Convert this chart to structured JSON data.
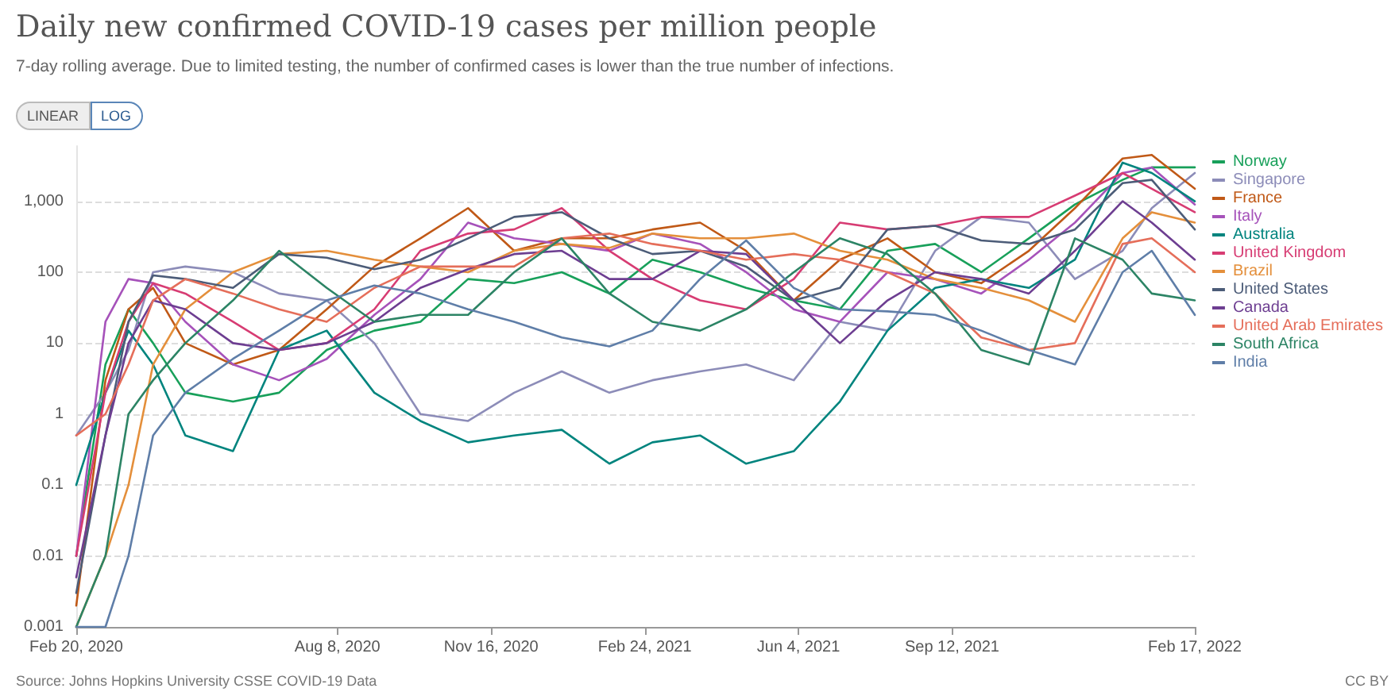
{
  "chart_data": {
    "type": "line",
    "title": "Daily new confirmed COVID-19 cases per million people",
    "subtitle": "7-day rolling average. Due to limited testing, the number of confirmed cases is lower than the true number of infections.",
    "annotations": [
      "LINEAR",
      "LOG",
      "Source: Johns Hopkins University CSSE COVID-19 Data",
      "CC BY"
    ],
    "x": [
      "2020-02-20",
      "2020-03-10",
      "2020-03-25",
      "2020-04-10",
      "2020-05-01",
      "2020-06-01",
      "2020-07-01",
      "2020-08-01",
      "2020-09-01",
      "2020-10-01",
      "2020-11-01",
      "2020-12-01",
      "2021-01-01",
      "2021-02-01",
      "2021-03-01",
      "2021-04-01",
      "2021-05-01",
      "2021-06-01",
      "2021-07-01",
      "2021-08-01",
      "2021-09-01",
      "2021-10-01",
      "2021-11-01",
      "2021-12-01",
      "2022-01-01",
      "2022-01-20",
      "2022-02-17"
    ],
    "series": [
      {
        "name": "Norway",
        "color": "#18a05a",
        "values": [
          0.01,
          5,
          30,
          10,
          2,
          1.5,
          2,
          8,
          15,
          20,
          80,
          70,
          100,
          50,
          150,
          100,
          60,
          40,
          30,
          200,
          250,
          100,
          300,
          900,
          2000,
          3000,
          3000
        ]
      },
      {
        "name": "Singapore",
        "color": "#8c8cb8",
        "values": [
          0.5,
          2,
          8,
          100,
          120,
          100,
          50,
          40,
          10,
          1,
          0.8,
          2,
          4,
          2,
          3,
          4,
          5,
          3,
          20,
          15,
          200,
          600,
          500,
          80,
          200,
          800,
          2500
        ]
      },
      {
        "name": "France",
        "color": "#c05917",
        "values": [
          0.002,
          3,
          30,
          60,
          10,
          5,
          8,
          30,
          120,
          300,
          800,
          200,
          300,
          300,
          400,
          500,
          200,
          40,
          150,
          300,
          100,
          70,
          200,
          800,
          4000,
          4500,
          1500
        ]
      },
      {
        "name": "Italy",
        "color": "#a652ba",
        "values": [
          0.01,
          20,
          80,
          70,
          20,
          5,
          3,
          6,
          25,
          80,
          500,
          300,
          250,
          200,
          350,
          250,
          100,
          30,
          20,
          100,
          80,
          50,
          150,
          500,
          2500,
          3000,
          900
        ]
      },
      {
        "name": "Australia",
        "color": "#00847e",
        "values": [
          0.1,
          2,
          15,
          5,
          0.5,
          0.3,
          8,
          15,
          2,
          0.8,
          0.4,
          0.5,
          0.6,
          0.2,
          0.4,
          0.5,
          0.2,
          0.3,
          1.5,
          15,
          60,
          80,
          60,
          150,
          3500,
          2500,
          1000
        ]
      },
      {
        "name": "United Kingdom",
        "color": "#d73c73",
        "values": [
          0.01,
          2,
          20,
          70,
          50,
          20,
          8,
          10,
          30,
          200,
          350,
          400,
          800,
          200,
          80,
          40,
          30,
          80,
          500,
          400,
          450,
          600,
          600,
          1200,
          2500,
          1500,
          700
        ]
      },
      {
        "name": "Brazil",
        "color": "#e48f3b",
        "values": [
          0.001,
          0.01,
          0.1,
          5,
          30,
          100,
          180,
          200,
          150,
          120,
          100,
          200,
          250,
          220,
          350,
          300,
          300,
          350,
          200,
          150,
          80,
          60,
          40,
          20,
          300,
          700,
          500
        ]
      },
      {
        "name": "United States",
        "color": "#4c5c78",
        "values": [
          0.003,
          0.5,
          20,
          90,
          80,
          60,
          180,
          160,
          110,
          150,
          300,
          600,
          700,
          300,
          180,
          200,
          120,
          40,
          60,
          400,
          450,
          280,
          250,
          400,
          1800,
          2000,
          400
        ]
      },
      {
        "name": "Canada",
        "color": "#6d3e91",
        "values": [
          0.005,
          0.5,
          10,
          40,
          30,
          10,
          8,
          10,
          20,
          60,
          110,
          180,
          200,
          80,
          80,
          200,
          180,
          40,
          10,
          40,
          100,
          80,
          50,
          200,
          1000,
          500,
          150
        ]
      },
      {
        "name": "United Arab Emirates",
        "color": "#e56e5a",
        "values": [
          0.5,
          1,
          5,
          40,
          80,
          50,
          30,
          20,
          60,
          120,
          120,
          120,
          300,
          350,
          250,
          200,
          150,
          180,
          150,
          100,
          50,
          12,
          8,
          10,
          250,
          300,
          100
        ]
      },
      {
        "name": "South Africa",
        "color": "#2c8465",
        "values": [
          0.001,
          0.01,
          1,
          3,
          10,
          40,
          200,
          60,
          20,
          25,
          25,
          100,
          300,
          50,
          20,
          15,
          30,
          100,
          300,
          180,
          50,
          8,
          5,
          300,
          150,
          50,
          40
        ]
      },
      {
        "name": "India",
        "color": "#5f7ea8",
        "values": [
          0.001,
          0.001,
          0.01,
          0.5,
          2,
          6,
          15,
          40,
          65,
          50,
          30,
          20,
          12,
          9,
          15,
          80,
          280,
          60,
          30,
          28,
          25,
          15,
          8,
          5,
          100,
          200,
          25
        ]
      }
    ],
    "xlim": [
      "2020-02-20",
      "2022-02-17"
    ],
    "xticks": [
      {
        "value": "2020-02-20",
        "label": "Feb 20, 2020"
      },
      {
        "value": "2020-08-08",
        "label": "Aug 8, 2020"
      },
      {
        "value": "2020-11-16",
        "label": "Nov 16, 2020"
      },
      {
        "value": "2021-02-24",
        "label": "Feb 24, 2021"
      },
      {
        "value": "2021-06-04",
        "label": "Jun 4, 2021"
      },
      {
        "value": "2021-09-12",
        "label": "Sep 12, 2021"
      },
      {
        "value": "2022-02-17",
        "label": "Feb 17, 2022"
      }
    ],
    "ylim": [
      0.001,
      6000
    ],
    "yticks": [
      0.001,
      0.01,
      0.1,
      1,
      10,
      100,
      {
        "value": 1000,
        "label": "1,000"
      }
    ],
    "log": "y",
    "grid": "y",
    "legend": "right",
    "marker": "none",
    "line_style": "solid"
  }
}
